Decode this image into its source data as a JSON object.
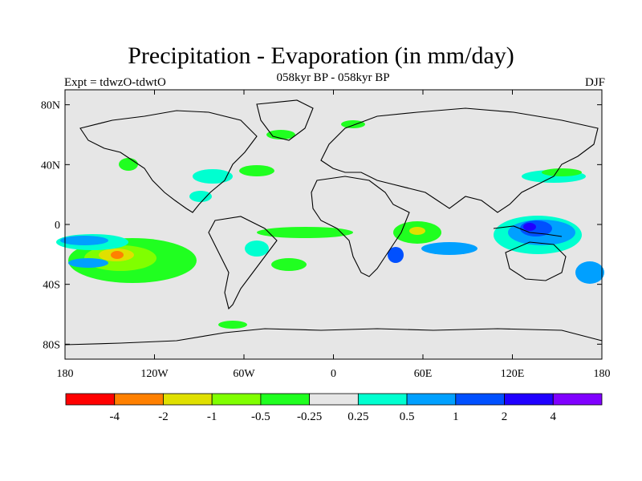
{
  "title": "Precipitation - Evaporation (in mm/day)",
  "subtitle": "058kyr BP - 058kyr BP",
  "left_note": "Expt = tdwzO-tdwtO",
  "right_note": "DJF",
  "map": {
    "projection": "cylindrical-equidistant",
    "lon_range": [
      -180,
      180
    ],
    "lat_range": [
      -90,
      90
    ],
    "background_color": "#e6e6e6",
    "coastline_color": "#000000",
    "lat_ticks": [
      {
        "value": 80,
        "label": "80N"
      },
      {
        "value": 40,
        "label": "40N"
      },
      {
        "value": 0,
        "label": "0"
      },
      {
        "value": -40,
        "label": "40S"
      },
      {
        "value": -80,
        "label": "80S"
      }
    ],
    "lon_ticks": [
      {
        "value": -180,
        "label": "180"
      },
      {
        "value": -120,
        "label": "120W"
      },
      {
        "value": -60,
        "label": "60W"
      },
      {
        "value": 0,
        "label": "0"
      },
      {
        "value": 60,
        "label": "60E"
      },
      {
        "value": 120,
        "label": "120E"
      },
      {
        "value": 180,
        "label": "180"
      }
    ]
  },
  "colorbar": {
    "colors": [
      "#ff0000",
      "#ff8000",
      "#e0e000",
      "#80ff00",
      "#20ff20",
      "#e6e6e6",
      "#00ffd0",
      "#00a0ff",
      "#0050ff",
      "#2000ff",
      "#8000ff"
    ],
    "labels": [
      "-4",
      "-2",
      "-1",
      "-0.5",
      "-0.25",
      "0.25",
      "0.5",
      "1",
      "2",
      "4"
    ]
  }
}
